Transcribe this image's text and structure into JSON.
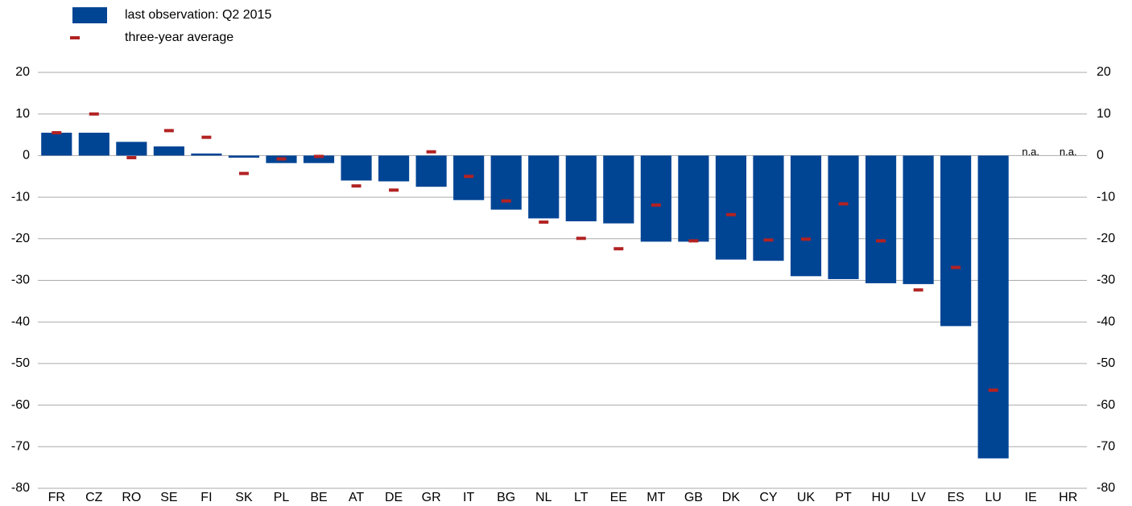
{
  "chart_data": {
    "type": "bar",
    "categories": [
      "FR",
      "CZ",
      "RO",
      "SE",
      "FI",
      "SK",
      "PL",
      "BE",
      "AT",
      "DE",
      "GR",
      "IT",
      "BG",
      "NL",
      "LT",
      "EE",
      "MT",
      "GB",
      "DK",
      "CY",
      "UK",
      "PT",
      "HU",
      "LV",
      "ES",
      "LU",
      "IE",
      "HR"
    ],
    "series": [
      {
        "name": "last observation: Q2 2015",
        "type": "bar",
        "color": "#004494",
        "values": [
          5.5,
          5.5,
          3.3,
          2.2,
          0.5,
          -0.5,
          -1.8,
          -1.8,
          -6,
          -6.2,
          -7.5,
          -10.7,
          -13,
          -15.1,
          -15.8,
          -16.3,
          -20.7,
          -20.7,
          -25,
          -25.3,
          -29,
          -29.7,
          -30.7,
          -30.9,
          -41,
          -72.8,
          null,
          null
        ]
      },
      {
        "name": "three-year average",
        "type": "marker",
        "color": "#b22222",
        "values": [
          5.5,
          10,
          -0.5,
          6,
          4.4,
          -4.3,
          -0.8,
          -0.2,
          -7.3,
          -8.3,
          0.9,
          -5,
          -10.9,
          -16,
          -19.9,
          -22.4,
          -11.9,
          -20.5,
          -14.2,
          -20.3,
          -20.1,
          -11.6,
          -20.5,
          -32.3,
          -26.9,
          -56.4,
          null,
          null
        ]
      }
    ],
    "annotations": [
      {
        "category": "IE",
        "text": "n.a."
      },
      {
        "category": "HR",
        "text": "n.a."
      }
    ],
    "ylim": [
      -80,
      20
    ],
    "yticks": [
      -80,
      -70,
      -60,
      -50,
      -40,
      -30,
      -20,
      -10,
      0,
      10,
      20
    ],
    "y2lim": [
      -80,
      20
    ],
    "y2ticks": [
      -80,
      -70,
      -60,
      -50,
      -40,
      -30,
      -20,
      -10,
      0,
      10,
      20
    ],
    "grid": true,
    "legend": "top-left"
  }
}
